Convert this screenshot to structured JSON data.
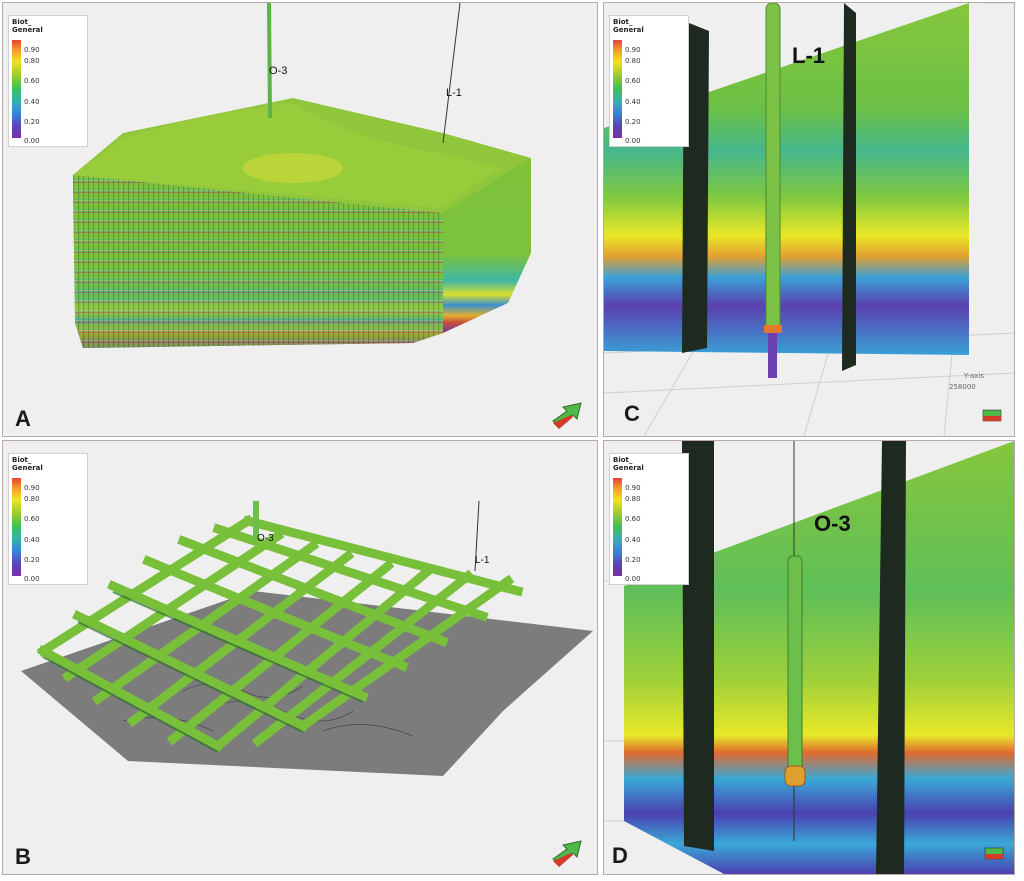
{
  "legend": {
    "title_line1": "Biot_",
    "title_line2": "General",
    "ticks": [
      "0.90",
      "0.80",
      "0.60",
      "0.40",
      "0.20",
      "0.00"
    ]
  },
  "panels": {
    "a": {
      "label": "A",
      "well_1": "O-3",
      "well_2": "L-1"
    },
    "b": {
      "label": "B",
      "well_1": "O-3",
      "well_2": "L-1"
    },
    "c": {
      "label": "C",
      "well": "L-1",
      "axis_label": "Y-axis",
      "axis_value": "258000"
    },
    "d": {
      "label": "D",
      "well": "O-3"
    }
  },
  "icons": [
    "orientation-arrow-icon",
    "orientation-cube-icon"
  ],
  "colors": {
    "background": "#efefef",
    "border": "#b8a8a8",
    "model_green": "#8cc63e"
  }
}
